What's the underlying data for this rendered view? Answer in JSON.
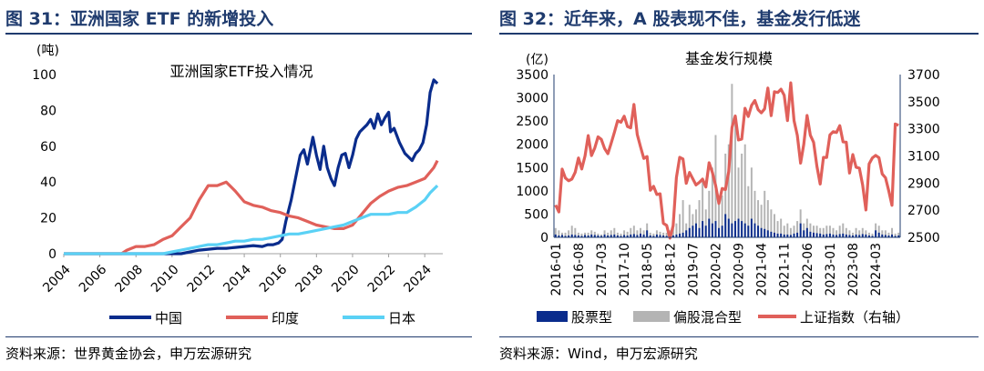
{
  "left": {
    "figure_title": "图 31：亚洲国家 ETF 的新增投入",
    "source": "资料来源：世界黄金协会，申万宏源研究"
  },
  "right": {
    "figure_title": "图 32：近年来，A 股表现不佳，基金发行低迷",
    "source": "资料来源：Wind，申万宏源研究"
  },
  "chart_data": [
    {
      "type": "line",
      "title": "亚洲国家ETF投入情况",
      "ylabel": "(吨)",
      "ylim": [
        0,
        100
      ],
      "yticks": [
        0,
        20,
        40,
        60,
        80,
        100
      ],
      "xlim": [
        2004,
        2025
      ],
      "xticks": [
        "2004",
        "2006",
        "2008",
        "2010",
        "2012",
        "2014",
        "2016",
        "2018",
        "2020",
        "2022",
        "2024"
      ],
      "legend_position": "bottom",
      "colors": {
        "中国": "#0a2c8c",
        "印度": "#e0605a",
        "日本": "#5ad1f5"
      },
      "series": [
        {
          "name": "中国",
          "points": [
            [
              2004,
              0
            ],
            [
              2010.5,
              0
            ],
            [
              2011,
              1
            ],
            [
              2011.5,
              2
            ],
            [
              2012,
              2.5
            ],
            [
              2012.5,
              3
            ],
            [
              2013,
              3
            ],
            [
              2013.5,
              3.5
            ],
            [
              2014,
              4
            ],
            [
              2014.5,
              4.5
            ],
            [
              2015,
              4
            ],
            [
              2015.3,
              5
            ],
            [
              2015.6,
              5
            ],
            [
              2015.9,
              6
            ],
            [
              2016.1,
              8
            ],
            [
              2016.3,
              18
            ],
            [
              2016.6,
              30
            ],
            [
              2016.9,
              45
            ],
            [
              2017.1,
              55
            ],
            [
              2017.3,
              58
            ],
            [
              2017.5,
              50
            ],
            [
              2017.8,
              65
            ],
            [
              2018.0,
              55
            ],
            [
              2018.2,
              47
            ],
            [
              2018.4,
              60
            ],
            [
              2018.6,
              48
            ],
            [
              2018.8,
              42
            ],
            [
              2019.0,
              38
            ],
            [
              2019.2,
              48
            ],
            [
              2019.4,
              55
            ],
            [
              2019.6,
              56
            ],
            [
              2019.8,
              48
            ],
            [
              2020.0,
              55
            ],
            [
              2020.2,
              64
            ],
            [
              2020.4,
              68
            ],
            [
              2020.6,
              70
            ],
            [
              2020.8,
              72
            ],
            [
              2021.0,
              75
            ],
            [
              2021.2,
              70
            ],
            [
              2021.4,
              78
            ],
            [
              2021.6,
              72
            ],
            [
              2021.8,
              76
            ],
            [
              2022.0,
              79
            ],
            [
              2022.1,
              68
            ],
            [
              2022.3,
              70
            ],
            [
              2022.6,
              62
            ],
            [
              2022.9,
              56
            ],
            [
              2023.1,
              54
            ],
            [
              2023.3,
              52
            ],
            [
              2023.5,
              56
            ],
            [
              2023.7,
              58
            ],
            [
              2023.9,
              62
            ],
            [
              2024.1,
              72
            ],
            [
              2024.3,
              90
            ],
            [
              2024.5,
              97
            ],
            [
              2024.7,
              95
            ]
          ]
        },
        {
          "name": "印度",
          "points": [
            [
              2004,
              0
            ],
            [
              2007.2,
              0
            ],
            [
              2007.5,
              2
            ],
            [
              2008,
              4
            ],
            [
              2008.5,
              4
            ],
            [
              2009,
              5
            ],
            [
              2009.5,
              8
            ],
            [
              2010,
              10
            ],
            [
              2010.5,
              15
            ],
            [
              2011,
              20
            ],
            [
              2011.5,
              30
            ],
            [
              2012,
              38
            ],
            [
              2012.5,
              38
            ],
            [
              2013,
              40
            ],
            [
              2013.5,
              35
            ],
            [
              2014,
              29
            ],
            [
              2014.5,
              27
            ],
            [
              2015,
              26
            ],
            [
              2015.5,
              24
            ],
            [
              2016,
              23
            ],
            [
              2016.5,
              21
            ],
            [
              2017,
              20
            ],
            [
              2017.5,
              18
            ],
            [
              2018,
              16
            ],
            [
              2018.5,
              15
            ],
            [
              2019,
              14
            ],
            [
              2019.5,
              14
            ],
            [
              2020,
              16
            ],
            [
              2020.5,
              22
            ],
            [
              2021,
              28
            ],
            [
              2021.5,
              32
            ],
            [
              2022,
              35
            ],
            [
              2022.5,
              37
            ],
            [
              2023,
              38
            ],
            [
              2023.5,
              40
            ],
            [
              2024,
              42
            ],
            [
              2024.5,
              48
            ],
            [
              2024.7,
              52
            ]
          ]
        },
        {
          "name": "日本",
          "points": [
            [
              2004,
              0
            ],
            [
              2009.5,
              0
            ],
            [
              2010,
              1
            ],
            [
              2010.5,
              2
            ],
            [
              2011,
              3
            ],
            [
              2011.5,
              4
            ],
            [
              2012,
              5
            ],
            [
              2012.5,
              5
            ],
            [
              2013,
              6
            ],
            [
              2013.5,
              7
            ],
            [
              2014,
              7
            ],
            [
              2014.5,
              8
            ],
            [
              2015,
              8
            ],
            [
              2015.5,
              9
            ],
            [
              2016,
              10
            ],
            [
              2016.5,
              11
            ],
            [
              2017,
              11
            ],
            [
              2017.5,
              12
            ],
            [
              2018,
              13
            ],
            [
              2018.5,
              14
            ],
            [
              2019,
              15
            ],
            [
              2019.5,
              16
            ],
            [
              2020,
              18
            ],
            [
              2020.5,
              20
            ],
            [
              2021,
              22
            ],
            [
              2021.5,
              22
            ],
            [
              2022,
              22
            ],
            [
              2022.5,
              23
            ],
            [
              2023,
              23
            ],
            [
              2023.5,
              26
            ],
            [
              2024,
              30
            ],
            [
              2024.3,
              34
            ],
            [
              2024.7,
              38
            ]
          ]
        }
      ]
    },
    {
      "type": "bar",
      "title": "基金发行规模",
      "ylabel": "(亿)",
      "ylim": [
        0,
        3500
      ],
      "yticks": [
        0,
        500,
        1000,
        1500,
        2000,
        2500,
        3000,
        3500
      ],
      "y2lim": [
        2500,
        3700
      ],
      "y2ticks": [
        2500,
        2700,
        2900,
        3100,
        3300,
        3500,
        3700
      ],
      "xticks": [
        "2016-01",
        "2016-08",
        "2017-03",
        "2017-10",
        "2018-05",
        "2018-12",
        "2019-07",
        "2020-02",
        "2020-09",
        "2021-04",
        "2021-11",
        "2022-06",
        "2023-01",
        "2023-08",
        "2024-03"
      ],
      "legend": [
        "股票型",
        "偏股混合型",
        "上证指数（右轴）"
      ],
      "legend_position": "bottom",
      "colors": {
        "股票型": "#0a2c8c",
        "偏股混合型": "#b4b4b4",
        "上证指数（右轴）": "#e0605a"
      },
      "x_start": "2016-01",
      "months": 106,
      "series": [
        {
          "name": "股票型",
          "axis": "left",
          "type": "bar",
          "values": [
            60,
            40,
            50,
            30,
            40,
            60,
            50,
            40,
            30,
            50,
            40,
            60,
            50,
            40,
            30,
            60,
            40,
            50,
            60,
            40,
            30,
            50,
            40,
            60,
            70,
            50,
            80,
            60,
            150,
            40,
            30,
            60,
            50,
            40,
            30,
            50,
            40,
            60,
            80,
            100,
            150,
            200,
            250,
            300,
            200,
            350,
            250,
            400,
            300,
            350,
            200,
            250,
            500,
            400,
            300,
            350,
            400,
            350,
            300,
            250,
            400,
            300,
            250,
            200,
            180,
            150,
            120,
            100,
            80,
            80,
            60,
            60,
            50,
            80,
            100,
            300,
            150,
            200,
            120,
            100,
            90,
            80,
            60,
            70,
            80,
            60,
            50,
            70,
            80,
            60,
            50,
            40,
            60,
            50,
            70,
            60,
            40,
            30,
            150,
            100,
            60,
            50,
            40,
            60,
            30,
            40
          ]
        },
        {
          "name": "偏股混合型",
          "axis": "left",
          "type": "bar",
          "values": [
            200,
            150,
            100,
            100,
            150,
            250,
            200,
            100,
            80,
            100,
            100,
            150,
            120,
            80,
            60,
            150,
            100,
            150,
            200,
            100,
            80,
            150,
            120,
            200,
            250,
            150,
            200,
            150,
            300,
            100,
            80,
            150,
            120,
            100,
            100,
            150,
            200,
            300,
            500,
            800,
            300,
            700,
            500,
            600,
            800,
            1200,
            600,
            1000,
            1500,
            2200,
            800,
            900,
            1800,
            2000,
            3300,
            2500,
            1500,
            1800,
            2000,
            1100,
            1500,
            1000,
            800,
            700,
            1000,
            800,
            600,
            500,
            350,
            400,
            250,
            300,
            200,
            250,
            350,
            600,
            300,
            400,
            300,
            250,
            250,
            200,
            200,
            250,
            250,
            200,
            150,
            250,
            300,
            200,
            150,
            100,
            200,
            150,
            200,
            150,
            100,
            80,
            300,
            250,
            150,
            150,
            100,
            200,
            80,
            100
          ]
        },
        {
          "name": "上证指数（右轴）",
          "axis": "right",
          "type": "line",
          "values": [
            2738,
            2687,
            3003,
            2938,
            2917,
            2930,
            2979,
            3085,
            3004,
            3100,
            3250,
            3103,
            3159,
            3241,
            3222,
            3154,
            3117,
            3192,
            3273,
            3360,
            3348,
            3393,
            3317,
            3307,
            3480,
            3259,
            3168,
            3082,
            3095,
            2847,
            2876,
            2816,
            2821,
            2603,
            2588,
            2494,
            2585,
            2941,
            3090,
            3078,
            2898,
            2978,
            2932,
            2886,
            2905,
            2929,
            2871,
            3050,
            2977,
            2880,
            2750,
            2860,
            2852,
            2985,
            3310,
            3395,
            3218,
            3224,
            3451,
            3391,
            3473,
            3509,
            3441,
            3418,
            3447,
            3601,
            3397,
            3573,
            3568,
            3592,
            3547,
            3361,
            3639,
            3361,
            3252,
            3047,
            3186,
            3398,
            3253,
            3200,
            3024,
            2893,
            3089,
            3089,
            3255,
            3279,
            3273,
            3323,
            3204,
            3202,
            2974,
            3110,
            3017,
            3010,
            2886,
            2702,
            3041,
            3086,
            3104,
            3087,
            2967,
            2939,
            2842,
            2736,
            3336,
            3326
          ]
        }
      ]
    }
  ]
}
